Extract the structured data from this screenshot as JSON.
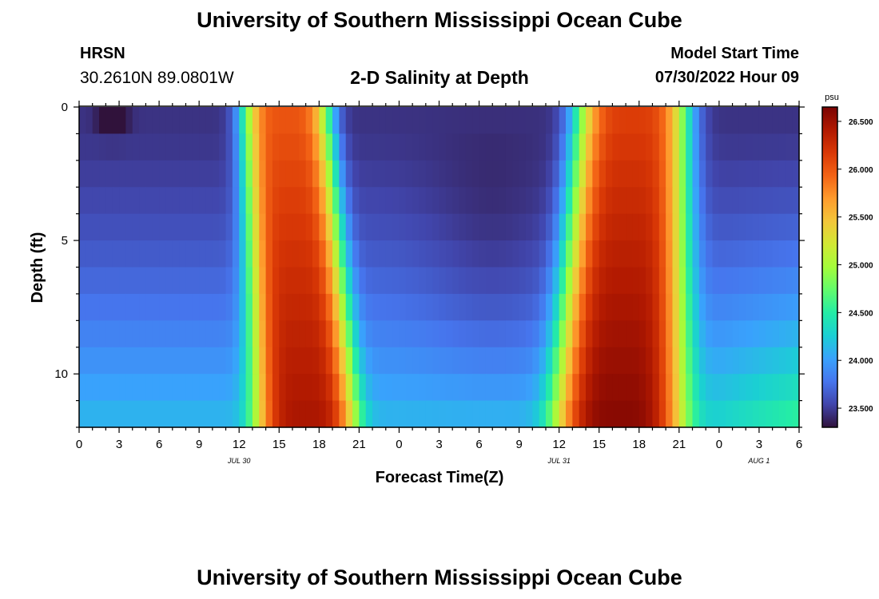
{
  "header": {
    "title": "University of Southern Mississippi Ocean Cube",
    "station": "HRSN",
    "coordinates": "30.2610N  89.0801W",
    "subtitle": "2-D Salinity at Depth",
    "model_start_label": "Model Start Time",
    "model_start_value": "07/30/2022 Hour 09"
  },
  "footer": {
    "title": "University of Southern Mississippi Ocean Cube"
  },
  "chart_data": {
    "type": "heatmap",
    "title": "2-D Salinity at Depth",
    "xlabel": "Forecast Time(Z)",
    "ylabel": "Depth (ft)",
    "x_unit": "hours since 07/30 00Z",
    "xlim": [
      0,
      54
    ],
    "ylim": [
      0,
      12
    ],
    "y_inverted": true,
    "x_major_ticks": [
      0,
      3,
      6,
      9,
      12,
      15,
      18,
      21,
      24,
      27,
      30,
      33,
      36,
      39,
      42,
      45,
      48,
      51,
      54
    ],
    "x_tick_labels": [
      "0",
      "3",
      "6",
      "9",
      "12",
      "15",
      "18",
      "21",
      "0",
      "3",
      "6",
      "9",
      "12",
      "15",
      "18",
      "21",
      "0",
      "3",
      "6"
    ],
    "y_major_ticks": [
      0,
      5,
      10
    ],
    "y_tick_labels": [
      "0",
      "5",
      "10"
    ],
    "date_labels": [
      {
        "text": "JUL 30",
        "x": 12
      },
      {
        "text": "JUL 31",
        "x": 36
      },
      {
        "text": "AUG 1",
        "x": 51
      }
    ],
    "colorbar": {
      "unit": "psu",
      "min": 23.3,
      "max": 26.65,
      "ticks": [
        23.5,
        24.0,
        24.5,
        25.0,
        25.5,
        26.0,
        26.5
      ],
      "tick_labels": [
        "23.500",
        "24.000",
        "24.500",
        "25.000",
        "25.500",
        "26.000",
        "26.500"
      ],
      "colors": [
        "#30123b",
        "#4145ab",
        "#4675ed",
        "#39a2fc",
        "#1bcfd4",
        "#24eca6",
        "#61fc6c",
        "#a4fc3b",
        "#d1e834",
        "#f3c63a",
        "#fe9b2d",
        "#f36315",
        "#d93806",
        "#b11901",
        "#7a0403"
      ]
    },
    "salinity_model": {
      "description": "Salinity (psu) as a function of forecast hour and depth; two high-salinity tidal pulses",
      "background_psu": {
        "surface": 23.45,
        "bottom": 24.15,
        "late_bottom": 24.6
      },
      "pulses": [
        {
          "center_hour_surface": 15.5,
          "center_hour_bottom": 17.0,
          "peak_psu": 26.45,
          "half_width_hours": 3.3
        },
        {
          "center_hour_surface": 41.5,
          "center_hour_bottom": 40.5,
          "peak_psu": 26.6,
          "half_width_hours": 4.2
        }
      ],
      "low_patch": {
        "hour": 2.5,
        "depth_ft": 0.4,
        "psu": 23.3
      }
    }
  }
}
